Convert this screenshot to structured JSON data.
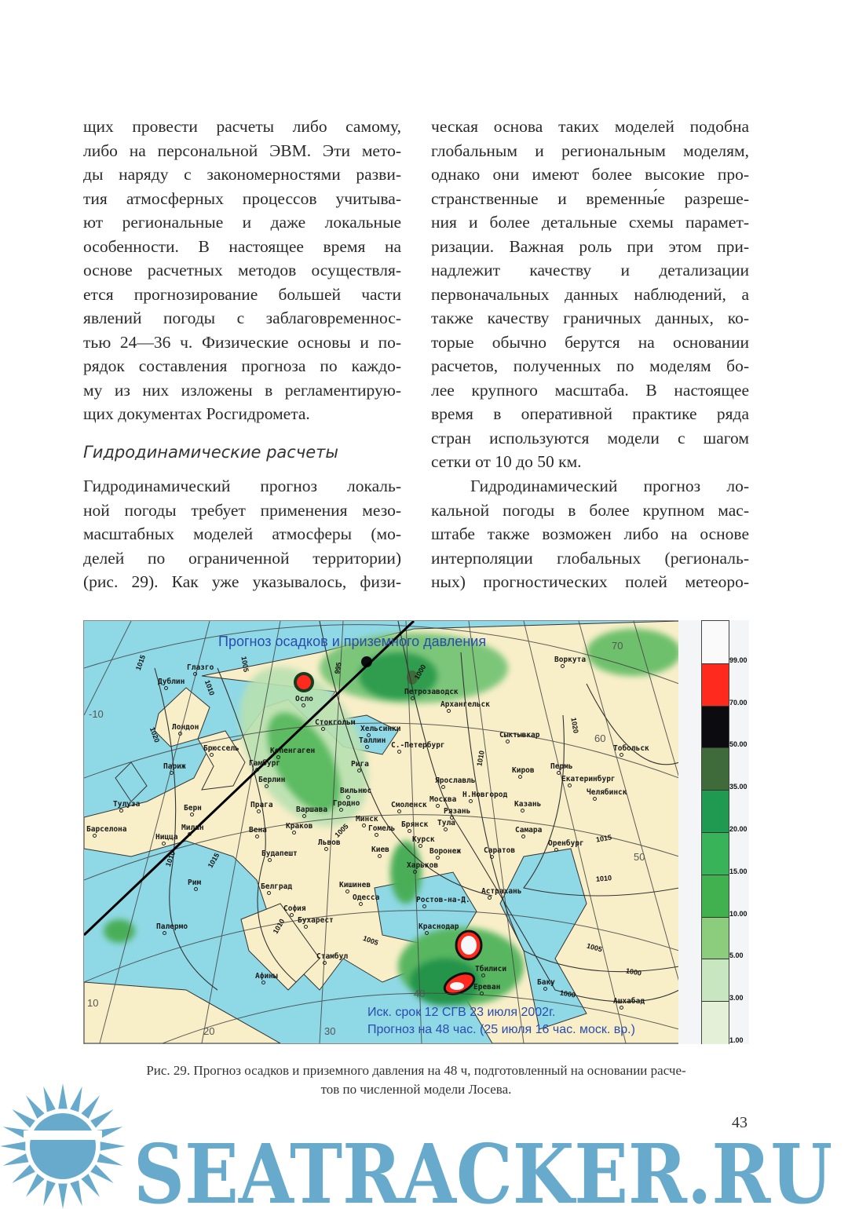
{
  "left_column": {
    "lines_p1": [
      "щих провести расчеты либо самому,",
      "либо на персональной ЭВМ. Эти мето-",
      "ды наряду с закономерностями разви-",
      "тия атмосферных процессов учитыва-",
      "ют региональные и даже локальные",
      "особенности. В настоящее время на",
      "основе расчетных методов осуществля-",
      "ется прогнозирование большей части",
      "явлений погоды с заблаговременнос-",
      "тью 24—36 ч. Физические основы и по-",
      "рядок составления прогноза по каждо-",
      "му из них изложены в регламентирую-",
      "щих документах Росгидромета."
    ],
    "heading": "Гидродинамические расчеты",
    "lines_p2": [
      "Гидродинамический прогноз локаль-",
      "ной погоды требует применения мезо-",
      "масштабных моделей атмосферы (мо-",
      "делей по ограниченной территории)",
      "(рис. 29). Как уже указывалось, физи-"
    ]
  },
  "right_column": {
    "lines_p1": [
      "ческая основа таких моделей подобна",
      "глобальным и региональным моделям,",
      "однако они имеют более высокие про-",
      "странственные и временны́е разреше-",
      "ния и более детальные схемы парамет-",
      "ризации. Важная роль при этом при-",
      "надлежит качеству и детализации",
      "первоначальных данных наблюдений, а",
      "также качеству граничных данных, ко-",
      "торые обычно берутся на основании",
      "расчетов, полученных по моделям бо-",
      "лее крупного масштаба. В настоящее",
      "время в оперативной практике ряда",
      "стран используются модели с шагом",
      "сетки от 10 до 50 км."
    ],
    "lines_p2": [
      "Гидродинамический прогноз ло-",
      "кальной погоды в более крупном мас-",
      "штабе также возможен либо на основе",
      "интерполяции глобальных (региональ-",
      "ных) прогностических полей метеоро-"
    ]
  },
  "figure": {
    "title": "Прогноз осадков и приземного давления",
    "issue_line": "Иск. срок 12 СГВ 23 июля 2002г.",
    "forecast_line": "Прогноз на 48 час. (25 июля 16 час. моск. вр.)",
    "cities": [
      "Глазго",
      "Дублин",
      "Осло",
      "Лондон",
      "Стокгольм",
      "Хельсинки",
      "Таллин",
      "С.-Петербург",
      "Брюссель",
      "Копенгаген",
      "Гамбург",
      "Рига",
      "Париж",
      "Берлин",
      "Вильнюс",
      "Гродно",
      "Варшава",
      "Минск",
      "Прага",
      "Берн",
      "Тулуза",
      "Барселона",
      "Милан",
      "Ницца",
      "Вена",
      "Краков",
      "Львов",
      "Будапешт",
      "Рим",
      "Белград",
      "Кишинев",
      "Одесса",
      "София",
      "Бухарест",
      "Палермо",
      "Стамбул",
      "Афины",
      "Петрозаводск",
      "Архангельск",
      "Воркута",
      "Сыктывкар",
      "Тобольск",
      "Киров",
      "Пермь",
      "Екатеринбург",
      "Ярославль",
      "Челябинск",
      "Н.Новгород",
      "Москва",
      "Смоленск",
      "Рязань",
      "Тула",
      "Казань",
      "Брянск",
      "Гомель",
      "Самара",
      "Курск",
      "Воронеж",
      "Киев",
      "Саратов",
      "Оренбург",
      "Харьков",
      "Ростов-на-Д.",
      "Астрахань",
      "Краснодар",
      "Тбилиси",
      "Ереван",
      "Баку",
      "Ашхабад"
    ],
    "isobar_labels": [
      "1015",
      "1010",
      "1005",
      "1020",
      "1010",
      "1015",
      "1010",
      "1005",
      "995",
      "1000",
      "1010",
      "1020",
      "1005",
      "1000",
      "1015",
      "1010",
      "1005",
      "1000"
    ],
    "grid_labels": [
      "-10",
      "10",
      "20",
      "30",
      "40",
      "50",
      "60",
      "70"
    ],
    "legend": {
      "labels": [
        "99.00",
        "70.00",
        "50.00",
        "35.00",
        "20.00",
        "15.00",
        "10.00",
        "5.00",
        "3.00",
        "1.00"
      ],
      "colors": [
        "#ff2a1e",
        "#0c0c10",
        "#3f6b3a",
        "#1f9a50",
        "#38b35a",
        "#41b04f",
        "#8ccc7d",
        "#c8e6c0",
        "#e4f0d8"
      ]
    },
    "caption_line1": "Рис. 29. Прогноз осадков и приземного давления на 48 ч, подготовленный на основании расче-",
    "caption_line2": "тов по численной модели Лосева."
  },
  "page_number": "43",
  "watermark": {
    "text": "SEATRACKER.RU",
    "color": "#67aacb"
  }
}
